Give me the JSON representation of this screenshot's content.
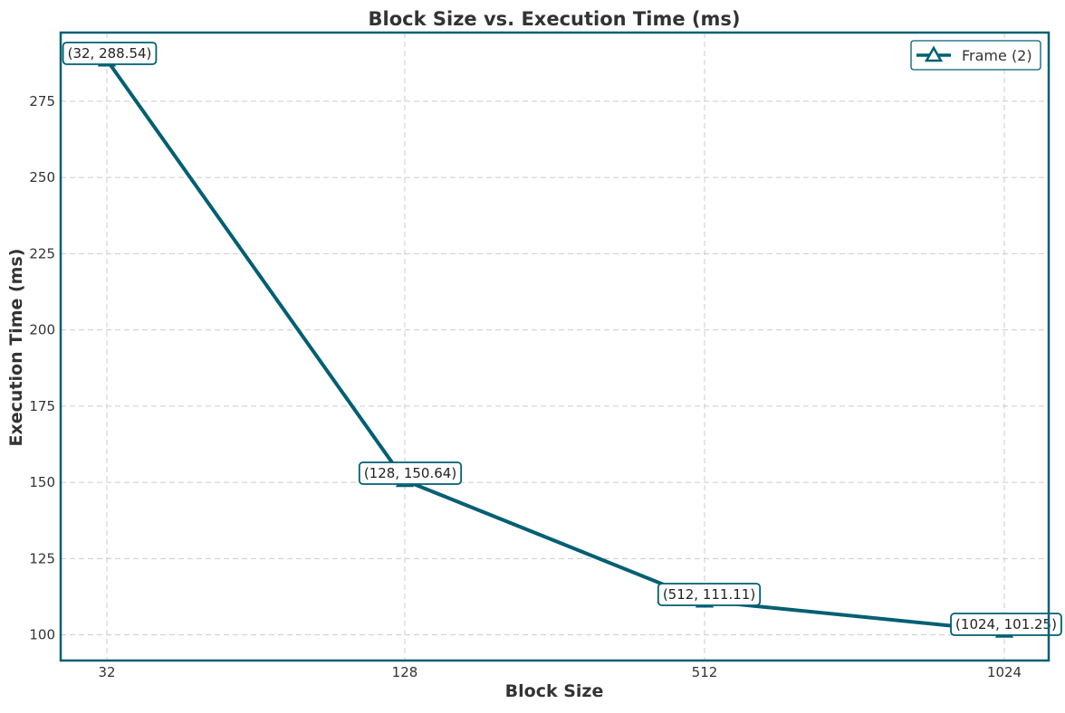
{
  "chart_data": {
    "type": "line",
    "title": "Block Size vs. Execution Time (ms)",
    "xlabel": "Block Size",
    "ylabel": "Execution Time (ms)",
    "categories": [
      "32",
      "128",
      "512",
      "1024"
    ],
    "ylim": [
      91.6,
      297.5
    ],
    "yticks": [
      100,
      125,
      150,
      175,
      200,
      225,
      250,
      275
    ],
    "grid": true,
    "legend_position": "top-right",
    "series": [
      {
        "name": "Frame (2)",
        "marker": "triangle",
        "color": "#005f73",
        "values": [
          288.54,
          150.64,
          111.11,
          101.25
        ],
        "annotations": [
          "(32, 288.54)",
          "(128, 150.64)",
          "(512, 111.11)",
          "(1024, 101.25)"
        ]
      }
    ]
  }
}
